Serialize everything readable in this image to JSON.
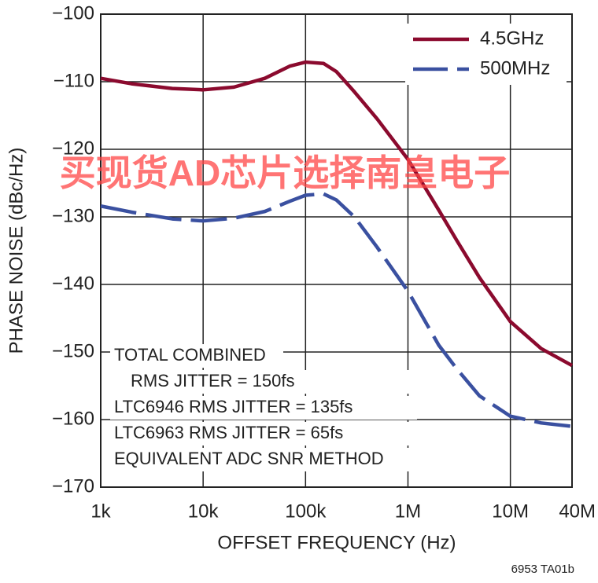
{
  "chart_data": {
    "type": "line",
    "y_label": "PHASE NOISE (dBc/Hz)",
    "x_label": "OFFSET FREQUENCY (Hz)",
    "log_x": true,
    "grid": true,
    "legend": "upper right",
    "annotations": [
      "TOTAL COMBINED",
      "RMS JITTER = 150fs",
      "LTC6946 RMS JITTER = 135fs",
      "LTC6963 RMS JITTER = 65fs",
      "EQUIVALENT ADC SNR METHOD"
    ],
    "watermark": "买现货AD芯片选择南皇电子",
    "footnote": "6953 TA01b",
    "xlim": [
      1000,
      40000000
    ],
    "xticks": [
      {
        "value": 1000,
        "label": "1k"
      },
      {
        "value": 10000,
        "label": "10k"
      },
      {
        "value": 100000,
        "label": "100k"
      },
      {
        "value": 1000000,
        "label": "1M"
      },
      {
        "value": 10000000,
        "label": "10M"
      },
      {
        "value": 40000000,
        "label": "40M"
      }
    ],
    "ylim": [
      -170,
      -100
    ],
    "yticks": [
      {
        "value": -100,
        "label": "−100"
      },
      {
        "value": -110,
        "label": "−110"
      },
      {
        "value": -120,
        "label": "−120"
      },
      {
        "value": -130,
        "label": "−130"
      },
      {
        "value": -140,
        "label": "−140"
      },
      {
        "value": -150,
        "label": "−150"
      },
      {
        "value": -160,
        "label": "−160"
      },
      {
        "value": -170,
        "label": "−170"
      }
    ],
    "x": [
      1000,
      2000,
      5000,
      10000,
      20000,
      40000,
      70000,
      100000,
      150000,
      200000,
      300000,
      500000,
      1000000,
      2000000,
      3000000,
      5000000,
      10000000,
      20000000,
      40000000
    ],
    "series": [
      {
        "name": "4.5GHz",
        "color": "#8b0a2e",
        "dashed": false,
        "values": [
          -109.5,
          -110.3,
          -111,
          -111.2,
          -110.8,
          -109.5,
          -107.7,
          -107.1,
          -107.3,
          -108.5,
          -111.5,
          -115.5,
          -121.5,
          -129,
          -133.5,
          -139,
          -145.5,
          -149.5,
          -152
        ]
      },
      {
        "name": "500MHz",
        "color": "#3a50a0",
        "dashed": true,
        "values": [
          -128.4,
          -129.3,
          -130.3,
          -130.6,
          -130.2,
          -129.2,
          -127.7,
          -126.8,
          -126.6,
          -127.5,
          -130,
          -134.5,
          -141,
          -149,
          -152.5,
          -156.5,
          -159.5,
          -160.5,
          -161
        ]
      }
    ]
  }
}
